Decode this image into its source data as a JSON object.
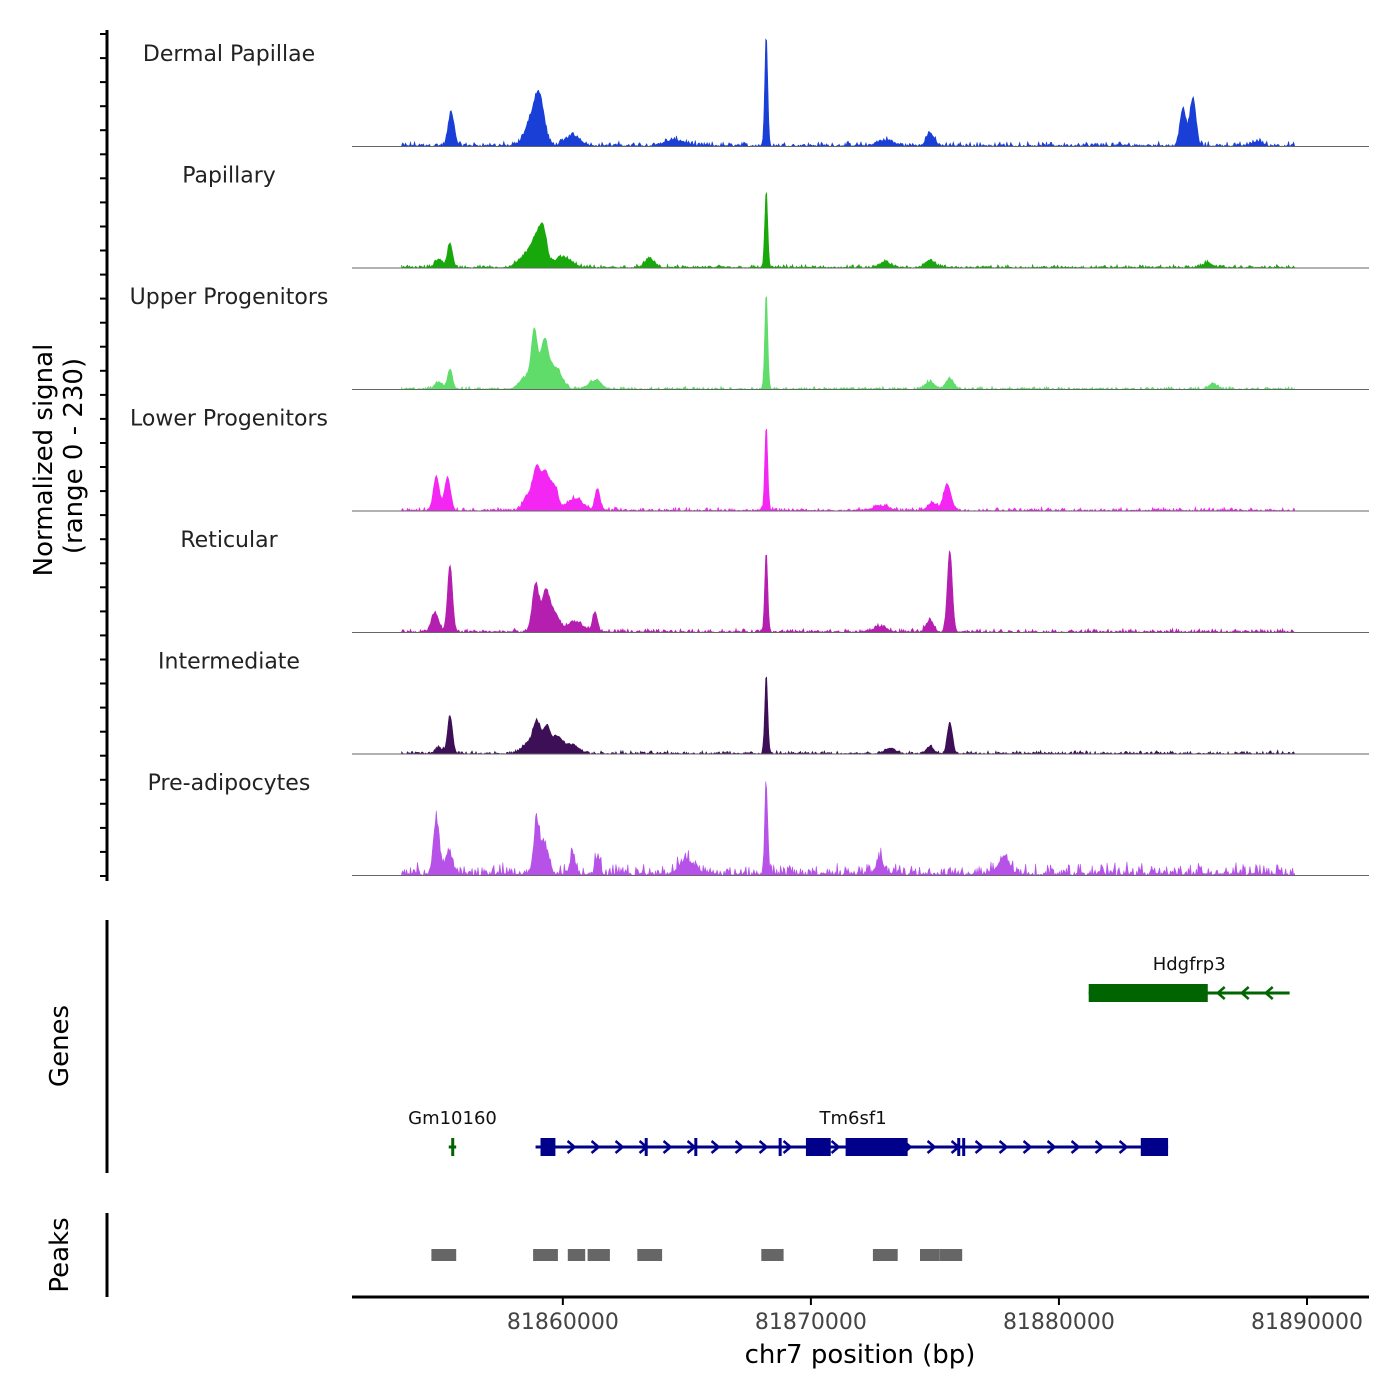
{
  "chart_data": {
    "type": "area",
    "title": "",
    "chromosome": "chr7",
    "xlabel": "chr7 position (bp)",
    "ylabel": "Normalized signal",
    "ylabel_range": "(range 0 - 230)",
    "xlim": [
      81851500,
      81892500
    ],
    "x_ticks": [
      81860000,
      81870000,
      81880000,
      81890000
    ],
    "x_tick_labels": [
      "81860000",
      "81870000",
      "81880000",
      "81890000"
    ],
    "ylim": [
      0,
      230
    ],
    "data_extent": [
      81853500,
      81889500
    ],
    "tracks": [
      {
        "name": "Dermal Papillae",
        "color": "#1a3fd6",
        "peaks": [
          [
            81855500,
            70,
            120
          ],
          [
            81858700,
            45,
            250
          ],
          [
            81859050,
            95,
            200
          ],
          [
            81860400,
            22,
            300
          ],
          [
            81864500,
            12,
            400
          ],
          [
            81868200,
            230,
            60
          ],
          [
            81873000,
            12,
            300
          ],
          [
            81874800,
            28,
            150
          ],
          [
            81885000,
            80,
            120
          ],
          [
            81885400,
            100,
            120
          ],
          [
            81888000,
            10,
            200
          ]
        ],
        "noise": 12
      },
      {
        "name": "Papillary",
        "color": "#19a80c",
        "peaks": [
          [
            81855000,
            18,
            150
          ],
          [
            81855450,
            52,
            100
          ],
          [
            81858500,
            25,
            300
          ],
          [
            81858900,
            50,
            180
          ],
          [
            81859200,
            75,
            150
          ],
          [
            81860000,
            22,
            350
          ],
          [
            81863500,
            18,
            200
          ],
          [
            81868200,
            160,
            60
          ],
          [
            81873000,
            12,
            200
          ],
          [
            81874800,
            16,
            200
          ],
          [
            81886000,
            10,
            200
          ]
        ],
        "noise": 8
      },
      {
        "name": "Upper Progenitors",
        "color": "#5fdc6a",
        "peaks": [
          [
            81855000,
            15,
            150
          ],
          [
            81855450,
            42,
            100
          ],
          [
            81858500,
            25,
            250
          ],
          [
            81858850,
            115,
            120
          ],
          [
            81859250,
            95,
            160
          ],
          [
            81859700,
            45,
            250
          ],
          [
            81861300,
            18,
            250
          ],
          [
            81868200,
            200,
            60
          ],
          [
            81874800,
            15,
            200
          ],
          [
            81875600,
            22,
            150
          ],
          [
            81886200,
            12,
            150
          ]
        ],
        "noise": 7
      },
      {
        "name": "Lower Progenitors",
        "color": "#f426f4",
        "peaks": [
          [
            81854900,
            72,
            120
          ],
          [
            81855350,
            70,
            120
          ],
          [
            81858600,
            30,
            200
          ],
          [
            81858950,
            85,
            150
          ],
          [
            81859300,
            75,
            150
          ],
          [
            81859650,
            50,
            150
          ],
          [
            81860500,
            25,
            300
          ],
          [
            81861400,
            45,
            100
          ],
          [
            81868200,
            175,
            60
          ],
          [
            81872800,
            10,
            300
          ],
          [
            81875500,
            55,
            150
          ],
          [
            81874900,
            15,
            200
          ]
        ],
        "noise": 9
      },
      {
        "name": "Reticular",
        "color": "#b51fb0",
        "peaks": [
          [
            81854850,
            40,
            150
          ],
          [
            81855450,
            140,
            100
          ],
          [
            81858900,
            100,
            130
          ],
          [
            81859300,
            80,
            150
          ],
          [
            81859650,
            40,
            200
          ],
          [
            81860500,
            22,
            300
          ],
          [
            81861300,
            40,
            100
          ],
          [
            81868200,
            170,
            60
          ],
          [
            81872800,
            12,
            250
          ],
          [
            81874800,
            25,
            150
          ],
          [
            81875600,
            170,
            100
          ]
        ],
        "noise": 9
      },
      {
        "name": "Intermediate",
        "color": "#3d0f56",
        "peaks": [
          [
            81855000,
            12,
            150
          ],
          [
            81855450,
            80,
            100
          ],
          [
            81858600,
            20,
            250
          ],
          [
            81858950,
            60,
            150
          ],
          [
            81859350,
            55,
            150
          ],
          [
            81859800,
            35,
            200
          ],
          [
            81860400,
            18,
            250
          ],
          [
            81868200,
            165,
            60
          ],
          [
            81873200,
            12,
            200
          ],
          [
            81874800,
            15,
            150
          ],
          [
            81875600,
            65,
            100
          ]
        ],
        "noise": 8
      },
      {
        "name": "Pre-adipocytes",
        "color": "#b652e8",
        "peaks": [
          [
            81854900,
            110,
            120
          ],
          [
            81855400,
            45,
            150
          ],
          [
            81858950,
            110,
            120
          ],
          [
            81859300,
            55,
            150
          ],
          [
            81860400,
            45,
            100
          ],
          [
            81861400,
            35,
            100
          ],
          [
            81865000,
            30,
            300
          ],
          [
            81868200,
            190,
            60
          ],
          [
            81872800,
            30,
            150
          ],
          [
            81877800,
            35,
            200
          ]
        ],
        "noise": 30
      }
    ],
    "genes_label": "Genes",
    "genes": [
      {
        "name": "Hdgfrp3",
        "strand": "-",
        "color": "#006400",
        "row": 0,
        "start": 81881200,
        "end": 81889300,
        "exons": [
          [
            81881200,
            81886000
          ]
        ]
      },
      {
        "name": "Gm10160",
        "strand": "-",
        "color": "#006400",
        "row": 1,
        "start": 81855400,
        "end": 81855700,
        "exons": [
          [
            81855500,
            81855560
          ]
        ]
      },
      {
        "name": "Tm6sf1",
        "strand": "+",
        "color": "#00008b",
        "row": 1,
        "start": 81858900,
        "end": 81884400,
        "exons": [
          [
            81859100,
            81859700
          ],
          [
            81863300,
            81863400
          ],
          [
            81865300,
            81865400
          ],
          [
            81868700,
            81868800
          ],
          [
            81869800,
            81870800
          ],
          [
            81871400,
            81873900
          ],
          [
            81875900,
            81876000
          ],
          [
            81876100,
            81876200
          ],
          [
            81883300,
            81884400
          ]
        ]
      }
    ],
    "peaks_label": "Peaks",
    "peaks": [
      [
        81854700,
        81855700
      ],
      [
        81858800,
        81859800
      ],
      [
        81860200,
        81860900
      ],
      [
        81861000,
        81861900
      ],
      [
        81863000,
        81864000
      ],
      [
        81868000,
        81868900
      ],
      [
        81872500,
        81873500
      ],
      [
        81874400,
        81875200
      ],
      [
        81875200,
        81876100
      ]
    ]
  }
}
